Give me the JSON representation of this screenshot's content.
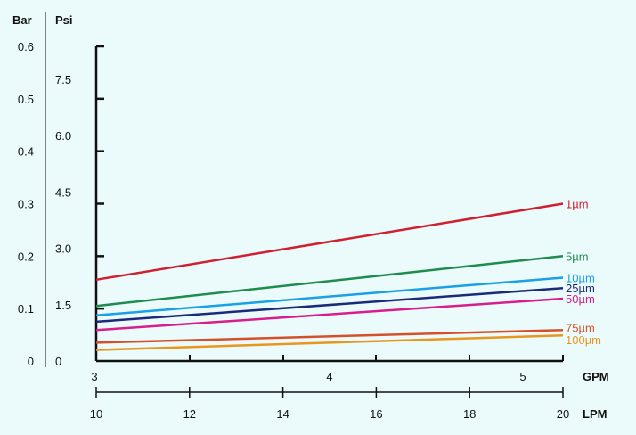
{
  "chart_data": {
    "type": "line",
    "title": "",
    "axes": {
      "left_bar": {
        "label": "Bar",
        "ticks": [
          "0.6",
          "0.5",
          "0.4",
          "0.3",
          "0.2",
          "0.1",
          "0"
        ],
        "range": [
          0,
          0.6
        ]
      },
      "left_psi": {
        "label": "Psi",
        "ticks": [
          "7.5",
          "6.0",
          "4.5",
          "3.0",
          "1.5",
          "0"
        ],
        "range": [
          0,
          8.7
        ]
      },
      "bottom_gpm": {
        "label": "GPM",
        "ticks": [
          "3",
          "4",
          "5"
        ]
      },
      "bottom_lpm": {
        "label": "LPM",
        "ticks": [
          "10",
          "12",
          "14",
          "16",
          "18",
          "20"
        ],
        "range": [
          10,
          20
        ]
      }
    },
    "x_unit": "LPM",
    "y_unit": "Bar",
    "grid": false,
    "series": [
      {
        "name": "1µm",
        "color": "#d0202f",
        "x": [
          10,
          20
        ],
        "y": [
          0.155,
          0.3
        ]
      },
      {
        "name": "5µm",
        "color": "#1e8c4e",
        "x": [
          10,
          20
        ],
        "y": [
          0.105,
          0.2
        ]
      },
      {
        "name": "10µm",
        "color": "#1aa0e6",
        "x": [
          10,
          20
        ],
        "y": [
          0.087,
          0.159
        ]
      },
      {
        "name": "25µm",
        "color": "#1c2a7a",
        "x": [
          10,
          20
        ],
        "y": [
          0.075,
          0.139
        ]
      },
      {
        "name": "50µm",
        "color": "#d81e8c",
        "x": [
          10,
          20
        ],
        "y": [
          0.059,
          0.119
        ]
      },
      {
        "name": "75µm",
        "color": "#d5502a",
        "x": [
          10,
          20
        ],
        "y": [
          0.035,
          0.059
        ]
      },
      {
        "name": "100µm",
        "color": "#e8961e",
        "x": [
          10,
          20
        ],
        "y": [
          0.021,
          0.049
        ]
      }
    ]
  }
}
